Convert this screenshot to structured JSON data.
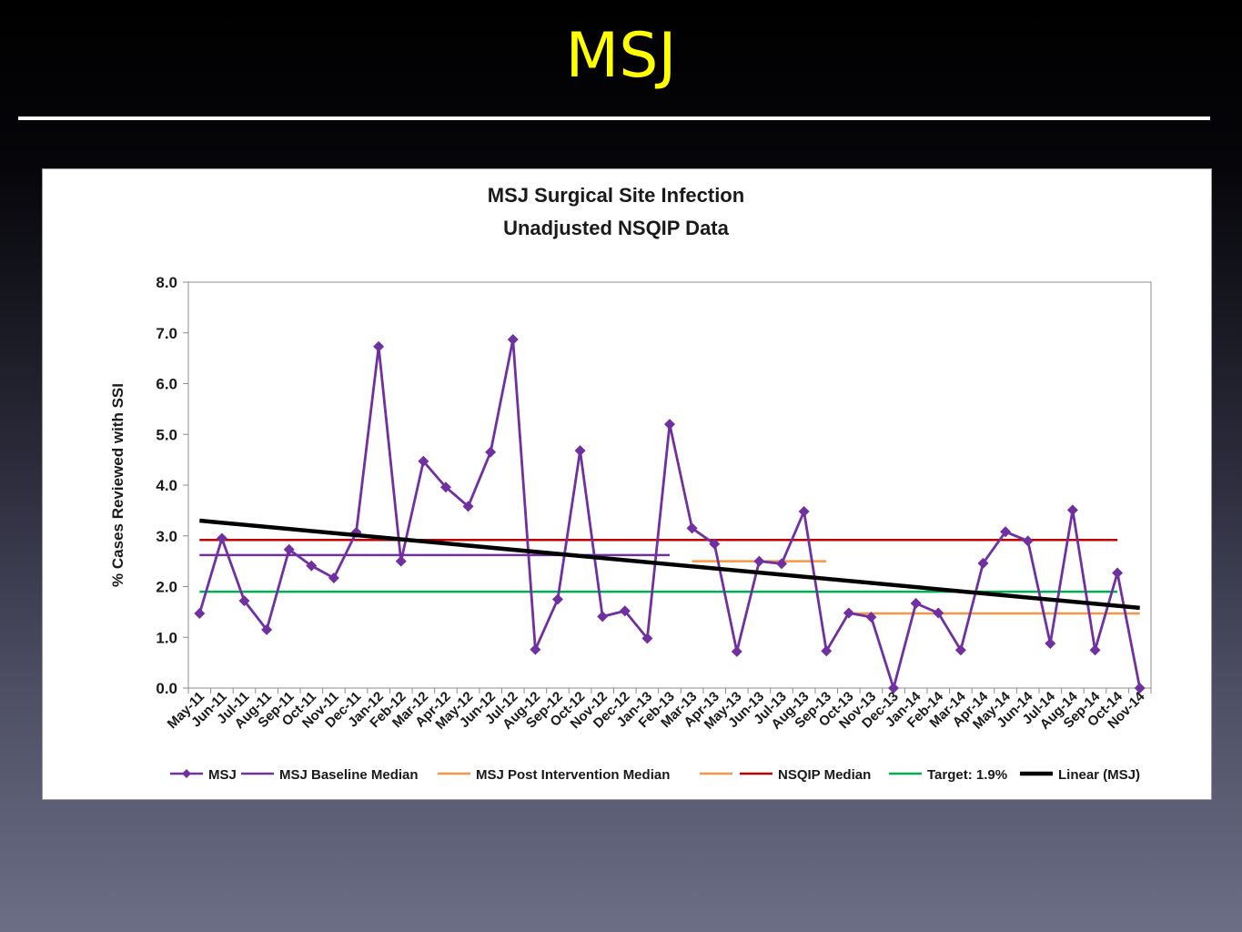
{
  "slide": {
    "title": "MSJ"
  },
  "chart_data": {
    "type": "line",
    "title": "MSJ Surgical Site Infection",
    "subtitle": "Unadjusted NSQIP Data",
    "xlabel": "",
    "ylabel": "% Cases Reviewed with SSI",
    "ylim": [
      0,
      8
    ],
    "yticks": [
      "0.0",
      "1.0",
      "2.0",
      "3.0",
      "4.0",
      "5.0",
      "6.0",
      "7.0",
      "8.0"
    ],
    "grid": false,
    "legend_position": "bottom",
    "categories": [
      "May-11",
      "Jun-11",
      "Jul-11",
      "Aug-11",
      "Sep-11",
      "Oct-11",
      "Nov-11",
      "Dec-11",
      "Jan-12",
      "Feb-12",
      "Mar-12",
      "Apr-12",
      "May-12",
      "Jun-12",
      "Jul-12",
      "Aug-12",
      "Sep-12",
      "Oct-12",
      "Nov-12",
      "Dec-12",
      "Jan-13",
      "Feb-13",
      "Mar-13",
      "Apr-13",
      "May-13",
      "Jun-13",
      "Jul-13",
      "Aug-13",
      "Sep-13",
      "Oct-13",
      "Nov-13",
      "Dec-13",
      "Jan-14",
      "Feb-14",
      "Mar-14",
      "Apr-14",
      "May-14",
      "Jun-14",
      "Jul-14",
      "Aug-14",
      "Sep-14",
      "Oct-14",
      "Nov-14"
    ],
    "series": [
      {
        "name": "MSJ",
        "color": "#7030a0",
        "marker": "diamond",
        "values": [
          1.47,
          2.95,
          1.72,
          1.15,
          2.73,
          2.41,
          2.17,
          3.07,
          6.73,
          2.5,
          4.47,
          3.96,
          3.58,
          4.65,
          6.87,
          0.76,
          1.75,
          4.68,
          1.41,
          1.52,
          0.98,
          5.2,
          3.15,
          2.84,
          0.72,
          2.5,
          2.45,
          3.48,
          0.73,
          1.48,
          1.4,
          0.0,
          1.67,
          1.48,
          0.75,
          2.46,
          3.08,
          2.9,
          0.88,
          3.51,
          0.75,
          2.27,
          0.0
        ]
      },
      {
        "name": "MSJ Baseline Median",
        "color": "#7030a0",
        "value": 2.62,
        "start": "May-11",
        "end": "Feb-13"
      },
      {
        "name": "MSJ Post Intervention Median",
        "color": "#f79646",
        "value": 2.5,
        "start": "Mar-13",
        "end": "Sep-13"
      },
      {
        "name": "",
        "color": "#f79646",
        "value": 1.47,
        "start": "Oct-13",
        "end": "Nov-14"
      },
      {
        "name": "NSQIP Median",
        "color": "#c00000",
        "value": 2.92,
        "start": "May-11",
        "end": "Oct-14"
      },
      {
        "name": "Target: 1.9%",
        "color": "#00b050",
        "value": 1.9,
        "start": "May-11",
        "end": "Oct-14"
      },
      {
        "name": "Linear (MSJ)",
        "color": "#000000",
        "trendline": true,
        "start_value": 3.3,
        "end_value": 1.58
      }
    ]
  }
}
